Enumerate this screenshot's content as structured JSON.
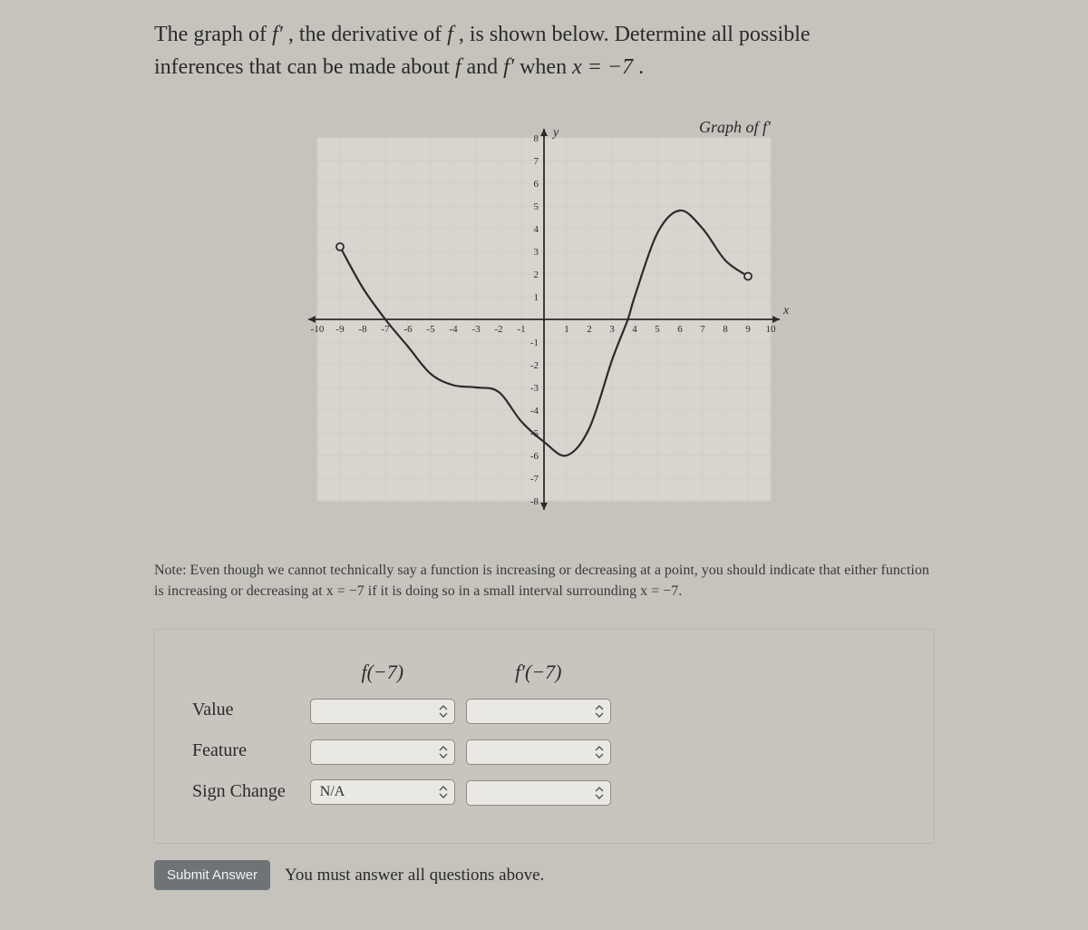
{
  "question": {
    "line1_pre": "The graph of ",
    "fprime": "f′",
    "line1_mid": ", the derivative of ",
    "f": "f",
    "line1_post": ", is shown below. Determine all possible",
    "line2_pre": "inferences that can be made about ",
    "line2_and": " and ",
    "line2_when": " when ",
    "xeq": "x = −7",
    "period": "."
  },
  "graph": {
    "label": "Graph of f′",
    "xlim": [
      -10,
      10
    ],
    "ylim": [
      -8,
      8
    ],
    "xticks": [
      -10,
      -9,
      -8,
      -7,
      -6,
      -5,
      -4,
      -3,
      -2,
      -1,
      1,
      2,
      3,
      4,
      5,
      6,
      7,
      8,
      9,
      10
    ],
    "yticks": [
      -8,
      -7,
      -6,
      -5,
      -4,
      -3,
      -2,
      -1,
      1,
      2,
      3,
      4,
      5,
      6,
      7,
      8
    ],
    "grid_color": "#cfcdc6",
    "axis_color": "#2b2b2b",
    "curve_color": "#2b2b2b",
    "bg_color": "#d7d5ce",
    "endpoint_open_radius": 4,
    "points": [
      [
        -9,
        3.2
      ],
      [
        -8,
        1.4
      ],
      [
        -7,
        0
      ],
      [
        -6,
        -1.2
      ],
      [
        -5,
        -2.4
      ],
      [
        -4,
        -2.9
      ],
      [
        -3,
        -3.0
      ],
      [
        -2,
        -3.2
      ],
      [
        -1,
        -4.5
      ],
      [
        0,
        -5.4
      ],
      [
        1,
        -6.0
      ],
      [
        2,
        -4.8
      ],
      [
        3,
        -1.8
      ],
      [
        3.7,
        0
      ],
      [
        4,
        1.0
      ],
      [
        5,
        3.8
      ],
      [
        6,
        4.8
      ],
      [
        7,
        4.0
      ],
      [
        8,
        2.6
      ],
      [
        9,
        1.9
      ]
    ],
    "open_endpoints": [
      [
        -9,
        3.2
      ],
      [
        9,
        1.9
      ]
    ],
    "axis_labels": {
      "x": "x",
      "y": "y"
    }
  },
  "note": "Note: Even though we cannot technically say a function is increasing or decreasing at a point, you should indicate that either function is increasing or decreasing at x = −7 if it is doing so in a small interval surrounding x = −7.",
  "table": {
    "col1": "f(−7)",
    "col2": "f′(−7)",
    "rows": [
      "Value",
      "Feature",
      "Sign Change"
    ],
    "cells": {
      "value_f": "",
      "value_fp": "",
      "feature_f": "",
      "feature_fp": "",
      "sign_f": "N/A",
      "sign_fp": ""
    }
  },
  "submit": {
    "button": "Submit Answer",
    "warning": "You must answer all questions above."
  }
}
